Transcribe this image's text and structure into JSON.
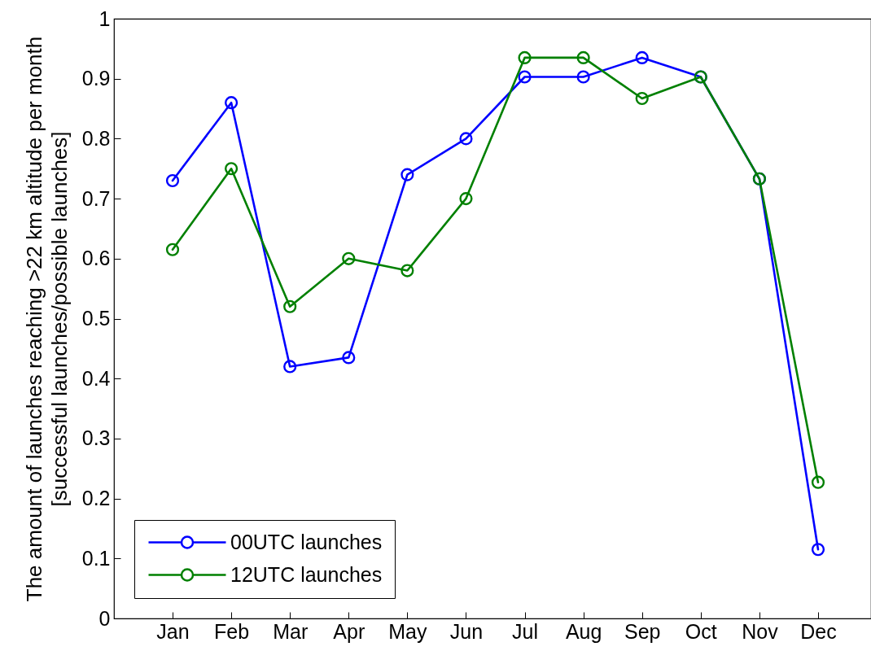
{
  "chart_data": {
    "type": "line",
    "ylabel": "The amount of launches reaching >22 km altitude per month\n[successful launches/possible launches]",
    "categories": [
      "Jan",
      "Feb",
      "Mar",
      "Apr",
      "May",
      "Jun",
      "Jul",
      "Aug",
      "Sep",
      "Oct",
      "Nov",
      "Dec"
    ],
    "series": [
      {
        "name": "00UTC launches",
        "color": "#0000ff",
        "values": [
          0.73,
          0.86,
          0.42,
          0.435,
          0.74,
          0.8,
          0.903,
          0.903,
          0.935,
          0.903,
          0.733,
          0.115
        ]
      },
      {
        "name": "12UTC launches",
        "color": "#008000",
        "values": [
          0.615,
          0.75,
          0.52,
          0.6,
          0.58,
          0.7,
          0.935,
          0.935,
          0.867,
          0.903,
          0.733,
          0.227
        ]
      }
    ],
    "ylim": [
      0,
      1
    ],
    "yticks": [
      0,
      0.1,
      0.2,
      0.3,
      0.4,
      0.5,
      0.6,
      0.7,
      0.8,
      0.9,
      1
    ],
    "grid": false,
    "legend": "bottom left",
    "marker": "circle",
    "line_style": "solid"
  }
}
